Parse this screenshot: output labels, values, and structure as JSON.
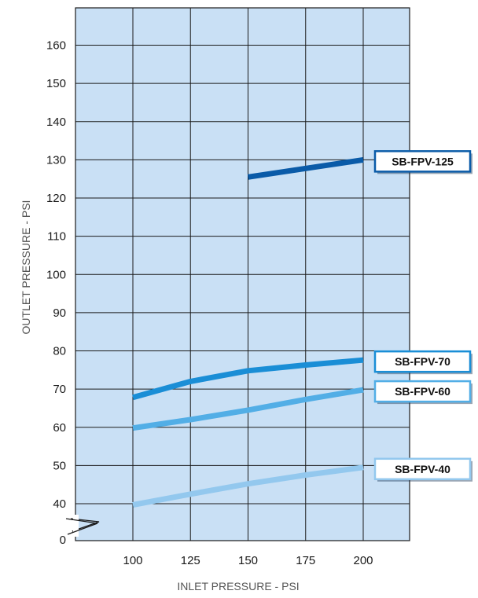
{
  "chart_data": {
    "type": "line",
    "title": "",
    "xlabel": "INLET PRESSURE - PSI",
    "ylabel": "OUTLET PRESSURE - PSI",
    "xlim": [
      75,
      225
    ],
    "ylim": [
      0,
      170
    ],
    "y_axis_break": "between 0 and 40",
    "x_ticks": [
      100,
      125,
      150,
      175,
      200
    ],
    "y_ticks": [
      0,
      40,
      50,
      60,
      70,
      80,
      90,
      100,
      110,
      120,
      130,
      140,
      150,
      160
    ],
    "grid": true,
    "plot_background": "#c9e0f5",
    "grid_color": "#1a1a1a",
    "series": [
      {
        "name": "SB-FPV-125",
        "color": "#0a5ba8",
        "label_border": "#0a5ba8",
        "x": [
          150,
          200
        ],
        "y": [
          125.5,
          130
        ]
      },
      {
        "name": "SB-FPV-70",
        "color": "#1a8ed6",
        "label_border": "#1a8ed6",
        "x": [
          100,
          125,
          150,
          175,
          200
        ],
        "y": [
          67.8,
          72,
          74.8,
          76.3,
          77.6
        ]
      },
      {
        "name": "SB-FPV-60",
        "color": "#52aee6",
        "label_border": "#52aee6",
        "x": [
          100,
          125,
          150,
          175,
          200
        ],
        "y": [
          59.8,
          62,
          64.5,
          67.3,
          69.8
        ]
      },
      {
        "name": "SB-FPV-40",
        "color": "#93c8ee",
        "label_border": "#93c8ee",
        "x": [
          100,
          125,
          150,
          175,
          200
        ],
        "y": [
          39.7,
          42.5,
          45.2,
          47.5,
          49.5
        ]
      }
    ]
  }
}
